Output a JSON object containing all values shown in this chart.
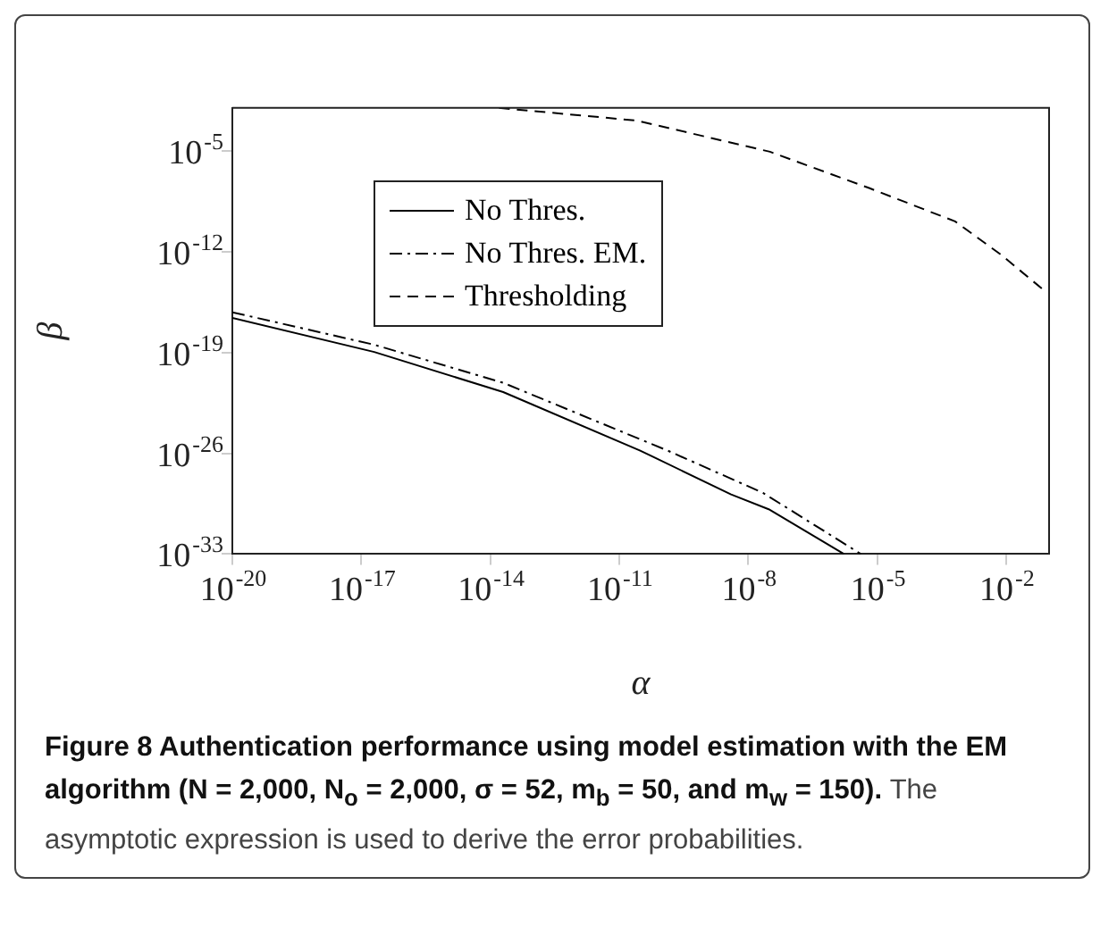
{
  "chart_data": {
    "type": "line",
    "xlabel": "α",
    "ylabel": "β",
    "log": "xy",
    "xlim": [
      1e-20,
      0.1
    ],
    "ylim": [
      1e-33,
      0.01
    ],
    "xticks": [
      {
        "value": 1e-20,
        "label": "10$^{-20}$"
      },
      {
        "value": 1e-17,
        "label": "10$^{-17}$"
      },
      {
        "value": 1e-14,
        "label": "10$^{-14}$"
      },
      {
        "value": 1e-11,
        "label": "10$^{-11}$"
      },
      {
        "value": 1e-08,
        "label": "10$^{-8}$"
      },
      {
        "value": 1e-05,
        "label": "10$^{-5}$"
      },
      {
        "value": 0.01,
        "label": "10$^{-2}$"
      }
    ],
    "yticks": [
      {
        "value": 1e-33,
        "label": "10$^{-33}$"
      },
      {
        "value": 1e-26,
        "label": "10$^{-26}$"
      },
      {
        "value": 1e-19,
        "label": "10$^{-19}$"
      },
      {
        "value": 1e-12,
        "label": "10$^{-12}$"
      },
      {
        "value": 1e-05,
        "label": "10$^{-5}$"
      }
    ],
    "legend": "top left",
    "grid": false,
    "marker": "none",
    "series": [
      {
        "name": "No Thres.",
        "color": "#000000",
        "line_style": "solid",
        "x": [
          1e-20,
          2e-17,
          2e-14,
          3e-11,
          4e-09,
          3e-08,
          1.7e-06
        ],
        "values": [
          2.6e-17,
          1.1e-19,
          1.8e-22,
          1.6e-26,
          1.4e-29,
          1.3e-30,
          1e-33
        ]
      },
      {
        "name": "No Thres. EM.",
        "color": "#000000",
        "line_style": "dashdot",
        "x": [
          1e-20,
          2e-17,
          2e-14,
          1.3e-10,
          2.2e-08,
          4.2e-06
        ],
        "values": [
          6.3e-17,
          3.5e-19,
          7.9e-22,
          1.6e-26,
          1.8e-29,
          1e-33
        ]
      },
      {
        "name": "Thresholding",
        "color": "#000000",
        "line_style": "dashed",
        "x": [
          1.6e-14,
          2.6e-11,
          3.2e-08,
          6.5e-06,
          0.00065,
          0.0076,
          0.083
        ],
        "values": [
          0.01,
          0.0013,
          9e-06,
          2.7e-08,
          1.3e-10,
          6.3e-13,
          1.7e-15
        ]
      }
    ],
    "annotations": [
      "Figure 8 Authentication performance using model estimation with the EM algorithm (N = 2,000, N$_{o}$ = 2,000, σ = 52, m$_{b}$ = 50, and m$_{w}$ = 150).",
      "The asymptotic expression is used to derive the error probabilities."
    ]
  }
}
